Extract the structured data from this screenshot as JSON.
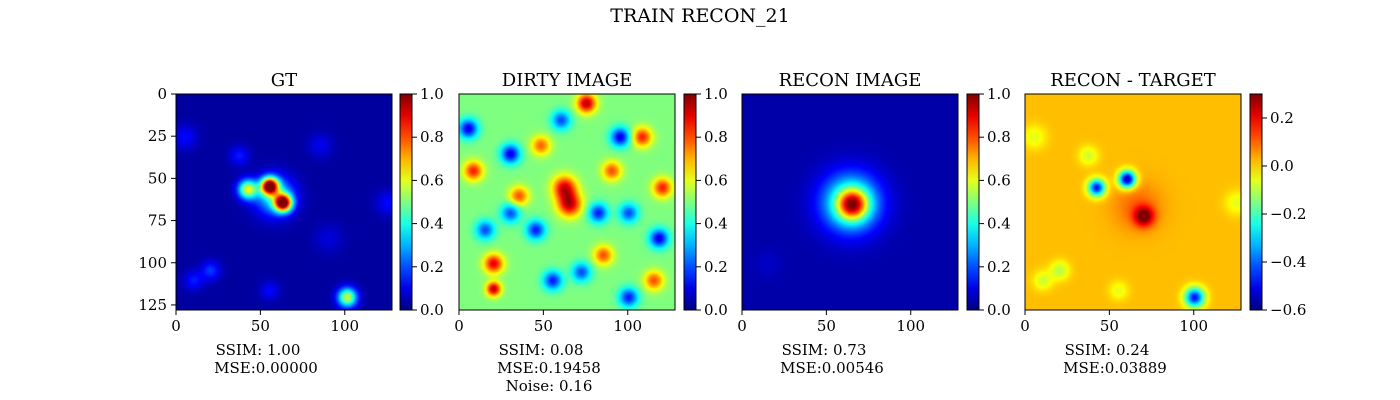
{
  "figure": {
    "title": "TRAIN RECON_21"
  },
  "chart_data": [
    {
      "type": "heatmap",
      "title": "GT",
      "xlabel": "",
      "ylabel": "",
      "x_ticks": [
        0,
        50,
        100
      ],
      "y_ticks": [
        0,
        25,
        50,
        75,
        100,
        125
      ],
      "xlim": [
        0,
        128
      ],
      "ylim": [
        128,
        0
      ],
      "colormap": "jet",
      "colorbar": {
        "min": 0.0,
        "max": 1.0,
        "ticks": [
          "0.0",
          "0.2",
          "0.4",
          "0.6",
          "0.8",
          "1.0"
        ]
      },
      "caption": [
        "SSIM: 1.00",
        "MSE:0.00000"
      ],
      "background": 0.03,
      "blobs": [
        {
          "x": 55,
          "y": 54,
          "s": 3.5,
          "a": 0.95
        },
        {
          "x": 63,
          "y": 64,
          "s": 3.5,
          "a": 0.95
        },
        {
          "x": 42,
          "y": 56,
          "s": 4,
          "a": 0.55
        },
        {
          "x": 58,
          "y": 60,
          "s": 8,
          "a": 0.35
        },
        {
          "x": 101,
          "y": 120,
          "s": 4,
          "a": 0.55
        },
        {
          "x": 37,
          "y": 36,
          "s": 4,
          "a": 0.12
        },
        {
          "x": 20,
          "y": 104,
          "s": 4,
          "a": 0.15
        },
        {
          "x": 10,
          "y": 110,
          "s": 4,
          "a": 0.12
        },
        {
          "x": 55,
          "y": 116,
          "s": 4,
          "a": 0.1
        },
        {
          "x": 85,
          "y": 30,
          "s": 5,
          "a": 0.08
        },
        {
          "x": 5,
          "y": 25,
          "s": 5,
          "a": 0.1
        },
        {
          "x": 125,
          "y": 64,
          "s": 5,
          "a": 0.1
        },
        {
          "x": 90,
          "y": 85,
          "s": 6,
          "a": 0.06
        }
      ]
    },
    {
      "type": "heatmap",
      "title": "DIRTY IMAGE",
      "xlabel": "",
      "ylabel": "",
      "x_ticks": [
        0,
        50,
        100
      ],
      "xlim": [
        0,
        128
      ],
      "ylim": [
        128,
        0
      ],
      "colormap": "jet",
      "colorbar": {
        "min": 0.0,
        "max": 1.0,
        "ticks": [
          "0.0",
          "0.2",
          "0.4",
          "0.6",
          "0.8",
          "1.0"
        ]
      },
      "caption": [
        "SSIM: 0.08",
        "MSE:0.19458",
        "Noise: 0.16"
      ],
      "background": 0.5,
      "blobs": [
        {
          "x": 62,
          "y": 55,
          "s": 5,
          "a": 0.4
        },
        {
          "x": 65,
          "y": 65,
          "s": 5,
          "a": 0.42
        },
        {
          "x": 20,
          "y": 100,
          "s": 4,
          "a": 0.4
        },
        {
          "x": 20,
          "y": 115,
          "s": 3,
          "a": 0.45
        },
        {
          "x": 75,
          "y": 5,
          "s": 4,
          "a": 0.45
        },
        {
          "x": 108,
          "y": 25,
          "s": 4,
          "a": 0.35
        },
        {
          "x": 8,
          "y": 45,
          "s": 4,
          "a": 0.35
        },
        {
          "x": 120,
          "y": 55,
          "s": 4,
          "a": 0.35
        },
        {
          "x": 90,
          "y": 45,
          "s": 4,
          "a": 0.3
        },
        {
          "x": 35,
          "y": 60,
          "s": 4,
          "a": 0.3
        },
        {
          "x": 115,
          "y": 110,
          "s": 4,
          "a": 0.3
        },
        {
          "x": 85,
          "y": 95,
          "s": 4,
          "a": 0.3
        },
        {
          "x": 48,
          "y": 30,
          "s": 4,
          "a": 0.28
        },
        {
          "x": 30,
          "y": 35,
          "s": 4,
          "a": -0.4
        },
        {
          "x": 5,
          "y": 20,
          "s": 4,
          "a": -0.4
        },
        {
          "x": 95,
          "y": 25,
          "s": 4,
          "a": -0.4
        },
        {
          "x": 118,
          "y": 85,
          "s": 4,
          "a": -0.4
        },
        {
          "x": 45,
          "y": 80,
          "s": 4,
          "a": -0.35
        },
        {
          "x": 30,
          "y": 70,
          "s": 4,
          "a": -0.3
        },
        {
          "x": 82,
          "y": 70,
          "s": 4,
          "a": -0.35
        },
        {
          "x": 55,
          "y": 110,
          "s": 4,
          "a": -0.35
        },
        {
          "x": 100,
          "y": 120,
          "s": 4,
          "a": -0.35
        },
        {
          "x": 15,
          "y": 80,
          "s": 4,
          "a": -0.3
        },
        {
          "x": 72,
          "y": 105,
          "s": 4,
          "a": -0.3
        },
        {
          "x": 100,
          "y": 70,
          "s": 4,
          "a": -0.3
        },
        {
          "x": 60,
          "y": 15,
          "s": 4,
          "a": -0.3
        }
      ]
    },
    {
      "type": "heatmap",
      "title": "RECON IMAGE",
      "xlabel": "",
      "ylabel": "",
      "x_ticks": [
        0,
        50,
        100
      ],
      "xlim": [
        0,
        128
      ],
      "ylim": [
        128,
        0
      ],
      "colormap": "jet",
      "colorbar": {
        "min": 0.0,
        "max": 1.0,
        "ticks": [
          "0.0",
          "0.2",
          "0.4",
          "0.6",
          "0.8",
          "1.0"
        ]
      },
      "caption": [
        "SSIM: 0.73",
        "MSE:0.00546"
      ],
      "background": 0.04,
      "blobs": [
        {
          "x": 65,
          "y": 65,
          "s": 6,
          "a": 0.55
        },
        {
          "x": 64,
          "y": 64,
          "s": 12,
          "a": 0.45
        },
        {
          "x": 15,
          "y": 100,
          "s": 6,
          "a": 0.03
        }
      ]
    },
    {
      "type": "heatmap",
      "title": "RECON - TARGET",
      "xlabel": "",
      "ylabel": "",
      "x_ticks": [
        0,
        50,
        100
      ],
      "xlim": [
        0,
        128
      ],
      "ylim": [
        128,
        0
      ],
      "colormap": "jet",
      "colorbar": {
        "min": -0.6,
        "max": 0.3,
        "ticks": [
          "−0.6",
          "−0.4",
          "−0.2",
          "0.0",
          "0.2"
        ],
        "tick_values": [
          -0.6,
          -0.4,
          -0.2,
          0.0,
          0.2
        ]
      },
      "caption": [
        "SSIM: 0.24",
        "MSE:0.03889"
      ],
      "background": 0.02,
      "blobs": [
        {
          "x": 60,
          "y": 50,
          "s": 3.5,
          "a": -0.6
        },
        {
          "x": 42,
          "y": 55,
          "s": 3.5,
          "a": -0.5
        },
        {
          "x": 100,
          "y": 120,
          "s": 4,
          "a": -0.5
        },
        {
          "x": 70,
          "y": 72,
          "s": 4,
          "a": 0.28
        },
        {
          "x": 66,
          "y": 66,
          "s": 10,
          "a": 0.08
        },
        {
          "x": 20,
          "y": 104,
          "s": 4,
          "a": -0.12
        },
        {
          "x": 10,
          "y": 110,
          "s": 4,
          "a": -0.1
        },
        {
          "x": 37,
          "y": 36,
          "s": 4,
          "a": -0.1
        },
        {
          "x": 55,
          "y": 116,
          "s": 4,
          "a": -0.08
        },
        {
          "x": 5,
          "y": 25,
          "s": 5,
          "a": -0.08
        },
        {
          "x": 125,
          "y": 64,
          "s": 5,
          "a": -0.08
        }
      ]
    }
  ]
}
